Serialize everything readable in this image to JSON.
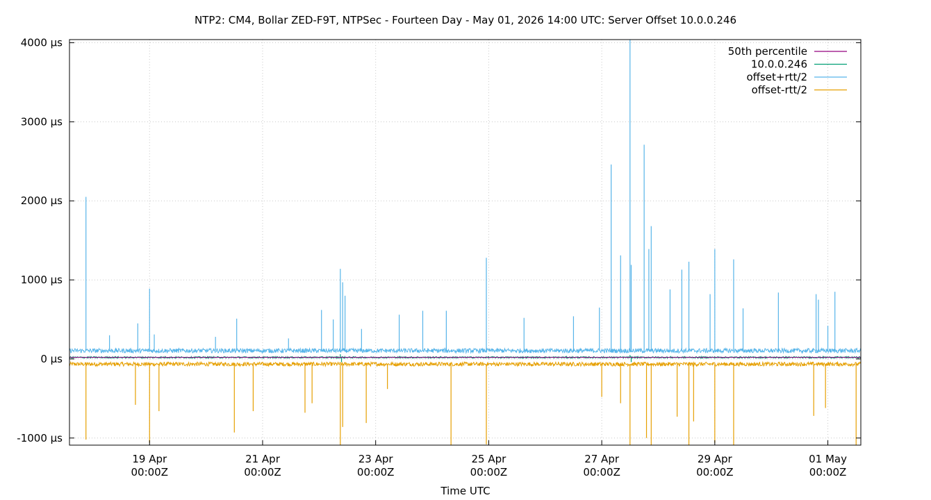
{
  "chart_data": {
    "type": "line",
    "title": "NTP2: CM4, Bollar ZED-F9T, NTPSec - Fourteen Day - May 01, 2026 14:00 UTC: Server Offset 10.0.0.246",
    "xlabel": "Time UTC",
    "ylabel": "",
    "xlim": [
      "2026-04-17T14:00Z",
      "2026-05-01T14:00Z"
    ],
    "ylim": [
      -1090,
      4040
    ],
    "yunit": "µs",
    "y_ticks": [
      -1000,
      0,
      1000,
      2000,
      3000,
      4000
    ],
    "y_tick_labels": [
      "-1000 µs",
      "0 µs",
      "1000 µs",
      "2000 µs",
      "3000 µs",
      "4000 µs"
    ],
    "x_ticks": [
      "2026-04-19T00:00Z",
      "2026-04-21T00:00Z",
      "2026-04-23T00:00Z",
      "2026-04-25T00:00Z",
      "2026-04-27T00:00Z",
      "2026-04-29T00:00Z",
      "2026-05-01T00:00Z"
    ],
    "x_tick_labels": [
      [
        "19 Apr",
        "00:00Z"
      ],
      [
        "21 Apr",
        "00:00Z"
      ],
      [
        "23 Apr",
        "00:00Z"
      ],
      [
        "25 Apr",
        "00:00Z"
      ],
      [
        "27 Apr",
        "00:00Z"
      ],
      [
        "29 Apr",
        "00:00Z"
      ],
      [
        "01 May",
        "00:00Z"
      ]
    ],
    "grid": true,
    "legend_position": "top-right",
    "series": [
      {
        "name": "50th percentile",
        "color": "#94007f",
        "baseline": 20,
        "noise": 0,
        "spikes": []
      },
      {
        "name": "10.0.0.246",
        "color": "#009e73",
        "baseline": 20,
        "noise": 10,
        "spikes": [
          [
            "2026-04-22T09:00Z",
            60
          ],
          [
            "2026-04-22T09:30Z",
            -40
          ],
          [
            "2026-04-27T12:00Z",
            50
          ],
          [
            "2026-04-27T12:30Z",
            -40
          ]
        ]
      },
      {
        "name": "offset+rtt/2",
        "color": "#56b4e9",
        "baseline": 105,
        "noise": 28,
        "spikes": [
          [
            "2026-04-17T21:00Z",
            2050
          ],
          [
            "2026-04-18T07:00Z",
            300
          ],
          [
            "2026-04-18T19:00Z",
            450
          ],
          [
            "2026-04-19T00:00Z",
            890
          ],
          [
            "2026-04-19T02:00Z",
            310
          ],
          [
            "2026-04-20T04:00Z",
            280
          ],
          [
            "2026-04-20T13:00Z",
            510
          ],
          [
            "2026-04-21T11:00Z",
            260
          ],
          [
            "2026-04-22T01:00Z",
            620
          ],
          [
            "2026-04-22T06:00Z",
            500
          ],
          [
            "2026-04-22T09:00Z",
            1140
          ],
          [
            "2026-04-22T10:00Z",
            970
          ],
          [
            "2026-04-22T11:00Z",
            800
          ],
          [
            "2026-04-22T18:00Z",
            380
          ],
          [
            "2026-04-23T10:00Z",
            560
          ],
          [
            "2026-04-23T20:00Z",
            610
          ],
          [
            "2026-04-24T06:00Z",
            610
          ],
          [
            "2026-04-24T23:00Z",
            1280
          ],
          [
            "2026-04-25T15:00Z",
            520
          ],
          [
            "2026-04-26T12:00Z",
            540
          ],
          [
            "2026-04-26T23:00Z",
            650
          ],
          [
            "2026-04-27T04:00Z",
            2460
          ],
          [
            "2026-04-27T08:00Z",
            1310
          ],
          [
            "2026-04-27T12:00Z",
            4040
          ],
          [
            "2026-04-27T12:30Z",
            1190
          ],
          [
            "2026-04-27T18:00Z",
            2710
          ],
          [
            "2026-04-27T21:00Z",
            1680
          ],
          [
            "2026-04-27T20:00Z",
            1390
          ],
          [
            "2026-04-28T05:00Z",
            880
          ],
          [
            "2026-04-28T10:00Z",
            1130
          ],
          [
            "2026-04-28T13:00Z",
            1230
          ],
          [
            "2026-04-28T22:00Z",
            820
          ],
          [
            "2026-04-29T00:00Z",
            1390
          ],
          [
            "2026-04-29T08:00Z",
            1260
          ],
          [
            "2026-04-29T12:00Z",
            640
          ],
          [
            "2026-04-30T03:00Z",
            840
          ],
          [
            "2026-04-30T19:00Z",
            820
          ],
          [
            "2026-04-30T20:00Z",
            750
          ],
          [
            "2026-05-01T00:00Z",
            420
          ],
          [
            "2026-05-01T03:00Z",
            850
          ]
        ]
      },
      {
        "name": "offset-rtt/2",
        "color": "#e69f00",
        "baseline": -65,
        "noise": 25,
        "spikes": [
          [
            "2026-04-17T21:00Z",
            -1020
          ],
          [
            "2026-04-18T18:00Z",
            -580
          ],
          [
            "2026-04-19T00:00Z",
            -1060
          ],
          [
            "2026-04-19T04:00Z",
            -660
          ],
          [
            "2026-04-20T12:00Z",
            -930
          ],
          [
            "2026-04-20T20:00Z",
            -660
          ],
          [
            "2026-04-21T18:00Z",
            -680
          ],
          [
            "2026-04-21T21:00Z",
            -560
          ],
          [
            "2026-04-22T09:00Z",
            -1090
          ],
          [
            "2026-04-22T10:00Z",
            -860
          ],
          [
            "2026-04-22T20:00Z",
            -810
          ],
          [
            "2026-04-23T05:00Z",
            -380
          ],
          [
            "2026-04-24T08:00Z",
            -1090
          ],
          [
            "2026-04-24T23:00Z",
            -1080
          ],
          [
            "2026-04-27T00:00Z",
            -480
          ],
          [
            "2026-04-27T08:00Z",
            -560
          ],
          [
            "2026-04-27T12:00Z",
            -1090
          ],
          [
            "2026-04-27T19:00Z",
            -1000
          ],
          [
            "2026-04-27T21:00Z",
            -1090
          ],
          [
            "2026-04-28T08:00Z",
            -730
          ],
          [
            "2026-04-28T13:00Z",
            -1090
          ],
          [
            "2026-04-28T15:00Z",
            -790
          ],
          [
            "2026-04-29T00:00Z",
            -1060
          ],
          [
            "2026-04-29T08:00Z",
            -1090
          ],
          [
            "2026-04-30T18:00Z",
            -720
          ],
          [
            "2026-04-30T23:00Z",
            -620
          ],
          [
            "2026-05-01T12:00Z",
            -1090
          ]
        ]
      }
    ]
  }
}
